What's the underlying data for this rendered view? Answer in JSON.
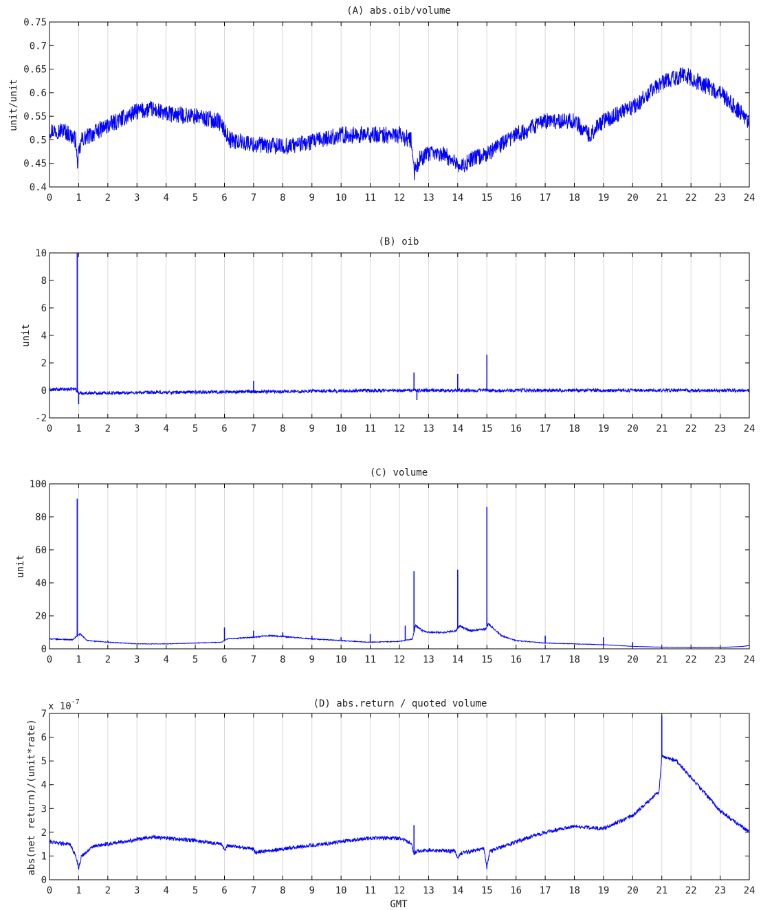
{
  "figure": {
    "xlabel": "GMT",
    "x_ticks": [
      "0",
      "1",
      "2",
      "3",
      "4",
      "5",
      "6",
      "7",
      "8",
      "9",
      "10",
      "11",
      "12",
      "13",
      "14",
      "15",
      "16",
      "17",
      "18",
      "19",
      "20",
      "21",
      "22",
      "23",
      "24"
    ],
    "line_color": "#0000ff",
    "grid_color": "#d8d8d8"
  },
  "chart_data": [
    {
      "type": "line",
      "title": "(A) abs.oib/volume",
      "ylabel": "unit/unit",
      "xlim": [
        0,
        24
      ],
      "ylim": [
        0.4,
        0.75
      ],
      "y_ticks": [
        "0.4",
        "0.45",
        "0.5",
        "0.55",
        "0.6",
        "0.65",
        "0.7",
        "0.75"
      ],
      "grid": "vertical",
      "noise": 0.018,
      "series": [
        {
          "x": [
            0,
            0.5,
            0.9,
            0.95,
            1.1,
            2,
            3,
            3.5,
            4,
            5,
            5.8,
            6.2,
            7,
            8,
            9,
            10,
            11,
            12,
            12.4,
            12.5,
            12.7,
            13,
            13.5,
            14,
            14.1,
            14.5,
            15,
            16,
            17,
            18,
            18.5,
            19,
            20,
            21,
            21.8,
            22,
            23,
            24
          ],
          "values": [
            0.52,
            0.52,
            0.5,
            0.45,
            0.5,
            0.53,
            0.56,
            0.565,
            0.555,
            0.55,
            0.54,
            0.5,
            0.49,
            0.485,
            0.495,
            0.51,
            0.51,
            0.51,
            0.5,
            0.43,
            0.46,
            0.47,
            0.47,
            0.45,
            0.44,
            0.46,
            0.47,
            0.51,
            0.54,
            0.54,
            0.51,
            0.54,
            0.57,
            0.62,
            0.64,
            0.63,
            0.6,
            0.54
          ]
        }
      ],
      "spikes": []
    },
    {
      "type": "line",
      "title": "(B) oib",
      "ylabel": "unit",
      "xlim": [
        0,
        24
      ],
      "ylim": [
        -2,
        10
      ],
      "y_ticks": [
        "-2",
        "0",
        "2",
        "4",
        "6",
        "8",
        "10"
      ],
      "grid": "vertical",
      "noise": 0.12,
      "series": [
        {
          "x": [
            0,
            0.9,
            1.0,
            12,
            12.5,
            13,
            24
          ],
          "values": [
            0.05,
            0.1,
            -0.2,
            0,
            0,
            0,
            0
          ]
        }
      ],
      "spikes": [
        {
          "x": 0.95,
          "value": 10
        },
        {
          "x": 1.0,
          "value": -1
        },
        {
          "x": 7.0,
          "value": 0.7
        },
        {
          "x": 12.5,
          "value": 1.3
        },
        {
          "x": 12.6,
          "value": -0.7
        },
        {
          "x": 14.0,
          "value": 1.2
        },
        {
          "x": 15.0,
          "value": 2.6
        }
      ]
    },
    {
      "type": "line",
      "title": "(C) volume",
      "ylabel": "unit",
      "xlim": [
        0,
        24
      ],
      "ylim": [
        0,
        100
      ],
      "y_ticks": [
        "0",
        "20",
        "40",
        "60",
        "80",
        "100"
      ],
      "grid": "vertical",
      "noise": 0.4,
      "series": [
        {
          "x": [
            0,
            0.8,
            0.95,
            1.05,
            1.3,
            2,
            3,
            4,
            5,
            5.9,
            6.1,
            7,
            7.5,
            8,
            9,
            10,
            11,
            12,
            12.45,
            12.55,
            12.8,
            13,
            13.5,
            13.95,
            14.05,
            14.4,
            14.95,
            15.05,
            15.5,
            16,
            17,
            18,
            19,
            20,
            21,
            22,
            23,
            23.8,
            24
          ],
          "values": [
            6,
            5.5,
            8,
            9,
            5,
            4,
            3,
            3,
            3.5,
            4,
            6,
            7,
            8,
            7.5,
            6,
            5,
            4,
            4.5,
            6,
            14,
            11,
            10,
            10,
            11,
            14,
            11,
            12,
            15,
            8,
            5,
            3.5,
            3,
            2.5,
            1.5,
            1,
            0.8,
            0.8,
            1.5,
            2
          ]
        }
      ],
      "spikes": [
        {
          "x": 0.95,
          "value": 91
        },
        {
          "x": 2.0,
          "value": 5
        },
        {
          "x": 6.0,
          "value": 13
        },
        {
          "x": 7.0,
          "value": 11
        },
        {
          "x": 8.0,
          "value": 10
        },
        {
          "x": 9.0,
          "value": 8
        },
        {
          "x": 10.0,
          "value": 7
        },
        {
          "x": 11.0,
          "value": 9
        },
        {
          "x": 12.2,
          "value": 14
        },
        {
          "x": 12.5,
          "value": 47
        },
        {
          "x": 14.0,
          "value": 48
        },
        {
          "x": 15.0,
          "value": 86
        },
        {
          "x": 17.0,
          "value": 8
        },
        {
          "x": 19.0,
          "value": 7
        },
        {
          "x": 20.0,
          "value": 4
        }
      ]
    },
    {
      "type": "line",
      "title": "(D) abs.return / quoted volume",
      "ylabel": "abs(net return)/(unit*rate)",
      "exponent_label": "x 10",
      "exponent_power": "-7",
      "xlim": [
        0,
        24
      ],
      "ylim": [
        0,
        7
      ],
      "y_ticks": [
        "0",
        "1",
        "2",
        "3",
        "4",
        "5",
        "6",
        "7"
      ],
      "grid": "vertical",
      "noise": 0.08,
      "series": [
        {
          "x": [
            0,
            0.7,
            0.9,
            1.0,
            1.1,
            1.5,
            2,
            3,
            3.5,
            4,
            5,
            5.9,
            6.0,
            6.1,
            7,
            7.05,
            8,
            9,
            10,
            11,
            12,
            12.4,
            12.5,
            12.6,
            13,
            13.9,
            14.0,
            14.1,
            14.9,
            15.0,
            15.1,
            16,
            17,
            18,
            19,
            20,
            20.9,
            21,
            21.5,
            22,
            23,
            24
          ],
          "values": [
            1.6,
            1.5,
            1.0,
            0.5,
            1.0,
            1.4,
            1.5,
            1.7,
            1.8,
            1.75,
            1.65,
            1.5,
            1.2,
            1.45,
            1.3,
            1.15,
            1.3,
            1.45,
            1.6,
            1.75,
            1.75,
            1.55,
            1.1,
            1.2,
            1.25,
            1.2,
            0.9,
            1.1,
            1.3,
            0.5,
            1.2,
            1.6,
            2.0,
            2.25,
            2.15,
            2.7,
            3.7,
            5.2,
            5.0,
            4.3,
            2.9,
            2.0
          ]
        }
      ],
      "spikes": [
        {
          "x": 12.5,
          "value": 2.3
        },
        {
          "x": 21.0,
          "value": 6.9
        }
      ]
    }
  ]
}
